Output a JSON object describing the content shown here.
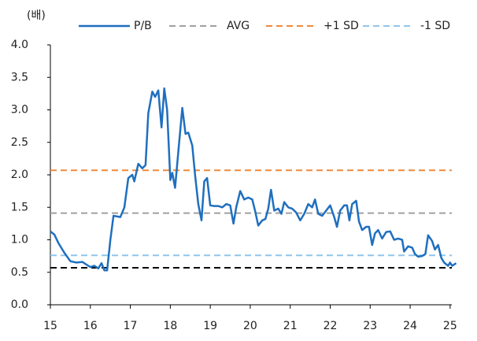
{
  "chart_data": {
    "type": "line",
    "y_unit_label": "(배)",
    "series": [
      {
        "name": "P/B",
        "color": "#1f6fbf",
        "x": [
          15.0,
          15.1,
          15.2,
          15.35,
          15.5,
          15.65,
          15.8,
          15.95,
          16.0,
          16.1,
          16.2,
          16.28,
          16.35,
          16.42,
          16.5,
          16.58,
          16.75,
          16.85,
          16.95,
          17.05,
          17.1,
          17.2,
          17.3,
          17.38,
          17.45,
          17.55,
          17.62,
          17.7,
          17.78,
          17.85,
          17.92,
          18.0,
          18.05,
          18.12,
          18.2,
          18.3,
          18.38,
          18.45,
          18.55,
          18.62,
          18.7,
          18.78,
          18.85,
          18.92,
          19.0,
          19.1,
          19.2,
          19.3,
          19.4,
          19.5,
          19.58,
          19.65,
          19.75,
          19.85,
          19.95,
          20.05,
          20.12,
          20.2,
          20.3,
          20.38,
          20.45,
          20.52,
          20.6,
          20.7,
          20.78,
          20.85,
          20.95,
          21.05,
          21.15,
          21.25,
          21.35,
          21.45,
          21.55,
          21.62,
          21.7,
          21.8,
          21.9,
          22.0,
          22.1,
          22.17,
          22.25,
          22.35,
          22.42,
          22.48,
          22.55,
          22.65,
          22.72,
          22.8,
          22.9,
          22.97,
          23.05,
          23.12,
          23.2,
          23.3,
          23.4,
          23.5,
          23.6,
          23.7,
          23.8,
          23.85,
          23.95,
          24.05,
          24.12,
          24.2,
          24.3,
          24.38,
          24.45,
          24.55,
          24.62,
          24.7,
          24.78,
          24.85,
          24.95,
          25.0,
          25.05,
          25.15
        ],
        "values": [
          1.13,
          1.08,
          0.95,
          0.8,
          0.67,
          0.65,
          0.66,
          0.6,
          0.58,
          0.6,
          0.56,
          0.64,
          0.53,
          0.53,
          1.0,
          1.37,
          1.35,
          1.5,
          1.95,
          2.0,
          1.9,
          2.17,
          2.1,
          2.15,
          2.95,
          3.28,
          3.2,
          3.3,
          2.73,
          3.33,
          3.0,
          1.92,
          2.03,
          1.8,
          2.35,
          3.03,
          2.63,
          2.65,
          2.45,
          2.0,
          1.55,
          1.3,
          1.9,
          1.95,
          1.53,
          1.52,
          1.52,
          1.5,
          1.55,
          1.53,
          1.25,
          1.5,
          1.75,
          1.62,
          1.65,
          1.62,
          1.45,
          1.22,
          1.3,
          1.32,
          1.48,
          1.77,
          1.45,
          1.48,
          1.4,
          1.58,
          1.5,
          1.48,
          1.42,
          1.3,
          1.4,
          1.55,
          1.5,
          1.62,
          1.4,
          1.37,
          1.45,
          1.53,
          1.35,
          1.2,
          1.45,
          1.53,
          1.53,
          1.3,
          1.55,
          1.6,
          1.28,
          1.15,
          1.2,
          1.2,
          0.92,
          1.1,
          1.15,
          1.02,
          1.12,
          1.13,
          1.0,
          1.02,
          1.0,
          0.82,
          0.9,
          0.88,
          0.78,
          0.74,
          0.75,
          0.78,
          1.07,
          0.98,
          0.85,
          0.92,
          0.72,
          0.65,
          0.6,
          0.65,
          0.6,
          0.64
        ]
      }
    ],
    "reference_lines": [
      {
        "name": "AVG",
        "value": 1.41,
        "color": "#a0a0a0"
      },
      {
        "name": "+1 SD",
        "value": 2.07,
        "color": "#f08a3c"
      },
      {
        "name": "-1 SD",
        "value": 0.76,
        "color": "#8ec6ec"
      },
      {
        "value": 0.57,
        "color": "#000000"
      }
    ],
    "xlim": [
      15,
      25.2
    ],
    "xticks": [
      15,
      16,
      17,
      18,
      19,
      20,
      21,
      22,
      23,
      24,
      25
    ],
    "ylim": [
      0,
      4
    ],
    "yticks": [
      {
        "value": 0,
        "label": "0.0"
      },
      0.5,
      {
        "value": 1,
        "label": "1.0"
      },
      1.5,
      {
        "value": 2,
        "label": "2.0"
      },
      2.5,
      {
        "value": 3,
        "label": "3.0"
      },
      3.5,
      {
        "value": 4,
        "label": "4.0"
      }
    ]
  }
}
